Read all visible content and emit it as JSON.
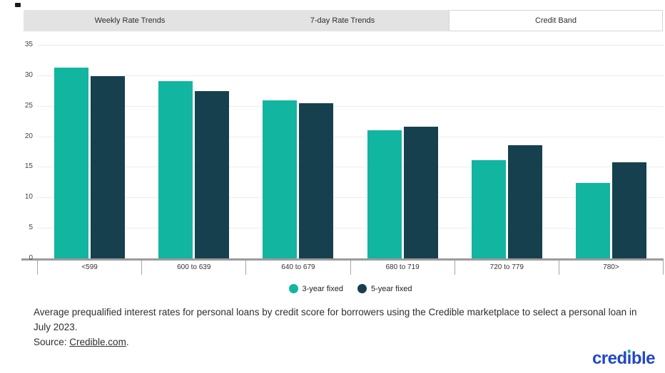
{
  "tabs": [
    {
      "label": "Weekly Rate Trends",
      "selected": false
    },
    {
      "label": "7-day Rate Trends",
      "selected": false
    },
    {
      "label": "Credit Band",
      "selected": true
    }
  ],
  "chart_data": {
    "type": "bar",
    "title": "",
    "xlabel": "",
    "ylabel": "",
    "categories": [
      "<599",
      "600 to 639",
      "640 to 679",
      "680 to 719",
      "720 to 779",
      "780>"
    ],
    "series": [
      {
        "name": "3-year fixed",
        "color": "#12b5a0",
        "values": [
          31.3,
          29.1,
          25.9,
          21.0,
          16.1,
          12.4
        ]
      },
      {
        "name": "5-year fixed",
        "color": "#17404e",
        "values": [
          29.9,
          27.4,
          25.4,
          21.6,
          18.5,
          15.7
        ]
      }
    ],
    "ylim": [
      0,
      35
    ],
    "yticks": [
      0,
      5,
      10,
      15,
      20,
      25,
      30,
      35
    ],
    "grid": true,
    "legend_position": "bottom"
  },
  "caption": {
    "line1": "Average prequalified interest rates for personal loans by credit score for borrowers using the Credible marketplace to select a personal loan in July 2023.",
    "source_prefix": "Source: ",
    "source_link": "Credible.com",
    "source_suffix": "."
  },
  "logo": {
    "text": "credible"
  },
  "colors": {
    "accent_teal": "#12b5a0",
    "dark_teal": "#17404e",
    "logo_blue": "#2148c8",
    "logo_dot_teal": "#1cb0a4",
    "tab_gray": "#e3e3e3"
  }
}
